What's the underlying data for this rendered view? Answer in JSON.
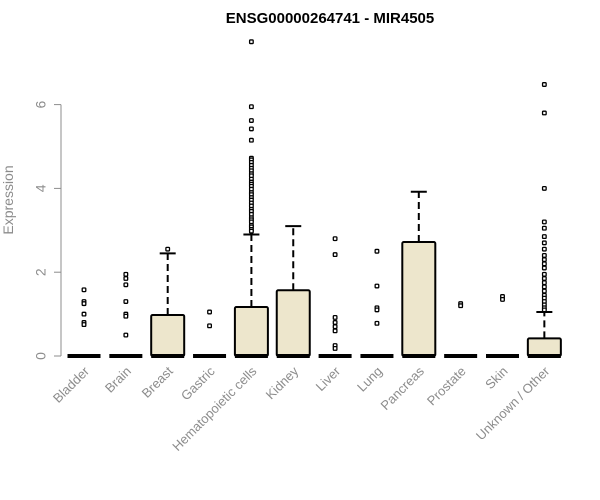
{
  "chart_data": {
    "type": "box",
    "title": "ENSG00000264741 - MIR4505",
    "ylabel": "Expression",
    "xlabel": "",
    "ylim": [
      -0.3,
      7.6
    ],
    "yticks": [
      0,
      2,
      4,
      6
    ],
    "grid": false,
    "box_fill": "#ede6cc",
    "categories": [
      "Bladder",
      "Brain",
      "Breast",
      "Gastric",
      "Hematopoietic cells",
      "Kidney",
      "Liver",
      "Lung",
      "Pancreas",
      "Prostate",
      "Skin",
      "Unknown / Other"
    ],
    "boxes": [
      {
        "category": "Bladder",
        "whisker_low": 0,
        "q1": 0,
        "median": 0,
        "q3": 0,
        "whisker_high": 0,
        "outliers": [
          1.58,
          1.3,
          1.25,
          1.0,
          0.8,
          0.75
        ]
      },
      {
        "category": "Brain",
        "whisker_low": 0,
        "q1": 0,
        "median": 0,
        "q3": 0,
        "whisker_high": 0,
        "outliers": [
          1.95,
          1.85,
          1.7,
          1.3,
          1.0,
          0.95,
          0.5
        ]
      },
      {
        "category": "Breast",
        "whisker_low": 0,
        "q1": 0,
        "median": 0,
        "q3": 0.98,
        "whisker_high": 2.45,
        "outliers": [
          2.55
        ]
      },
      {
        "category": "Gastric",
        "whisker_low": 0,
        "q1": 0,
        "median": 0,
        "q3": 0,
        "whisker_high": 0,
        "outliers": [
          1.05,
          0.72
        ]
      },
      {
        "category": "Hematopoietic cells",
        "whisker_low": 0,
        "q1": 0,
        "median": 0,
        "q3": 1.17,
        "whisker_high": 2.9,
        "outliers": [
          7.5,
          5.95,
          5.62,
          5.42,
          5.15,
          4.72,
          4.68,
          4.62,
          4.55,
          4.48,
          4.42,
          4.35,
          4.3,
          4.22,
          4.15,
          4.1,
          4.05,
          3.98,
          3.9,
          3.85,
          3.78,
          3.72,
          3.65,
          3.58,
          3.5,
          3.45,
          3.38,
          3.3,
          3.25,
          3.2,
          3.12,
          3.08,
          3.02,
          2.98
        ]
      },
      {
        "category": "Kidney",
        "whisker_low": 0,
        "q1": 0,
        "median": 0,
        "q3": 1.57,
        "whisker_high": 3.1,
        "outliers": []
      },
      {
        "category": "Liver",
        "whisker_low": 0,
        "q1": 0,
        "median": 0,
        "q3": 0,
        "whisker_high": 0,
        "outliers": [
          2.8,
          2.42,
          0.92,
          0.8,
          0.7,
          0.6,
          0.25,
          0.18
        ]
      },
      {
        "category": "Lung",
        "whisker_low": 0,
        "q1": 0,
        "median": 0,
        "q3": 0,
        "whisker_high": 0,
        "outliers": [
          2.5,
          1.67,
          1.15,
          1.1,
          0.78
        ]
      },
      {
        "category": "Pancreas",
        "whisker_low": 0,
        "q1": 0,
        "median": 0,
        "q3": 2.72,
        "whisker_high": 3.92,
        "outliers": []
      },
      {
        "category": "Prostate",
        "whisker_low": 0,
        "q1": 0,
        "median": 0,
        "q3": 0,
        "whisker_high": 0,
        "outliers": [
          1.25,
          1.2
        ]
      },
      {
        "category": "Skin",
        "whisker_low": 0,
        "q1": 0,
        "median": 0,
        "q3": 0,
        "whisker_high": 0,
        "outliers": [
          1.42,
          1.35
        ]
      },
      {
        "category": "Unknown / Other",
        "whisker_low": 0,
        "q1": 0,
        "median": 0,
        "q3": 0.42,
        "whisker_high": 1.05,
        "outliers": [
          6.48,
          5.8,
          4.0,
          3.2,
          3.05,
          2.85,
          2.7,
          2.55,
          2.4,
          2.3,
          2.2,
          2.1,
          1.95,
          1.85,
          1.75,
          1.65,
          1.55,
          1.45,
          1.38,
          1.3,
          1.22,
          1.15,
          1.1
        ]
      }
    ]
  }
}
